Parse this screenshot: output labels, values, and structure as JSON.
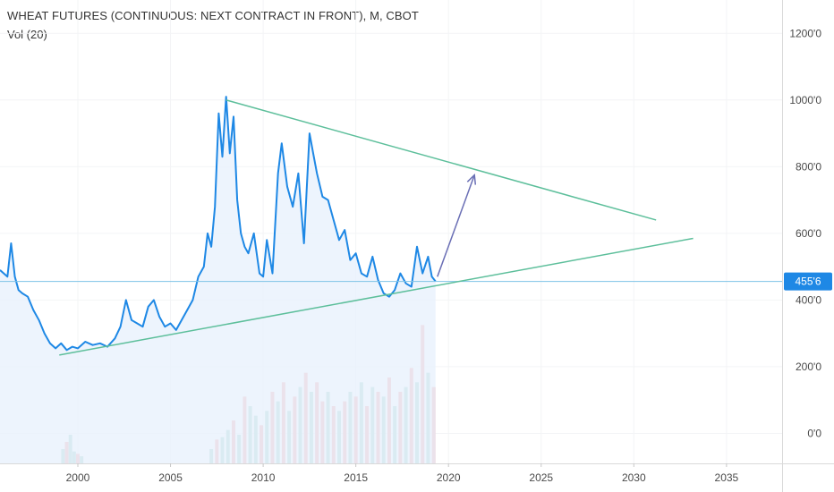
{
  "header": {
    "title": "WHEAT FUTURES (CONTINUOUS: NEXT CONTRACT IN FRONT), M, CBOT",
    "volume_label": "Vol (20)"
  },
  "colors": {
    "price_line": "#1e88e5",
    "price_fill": "#e8f1fc",
    "trendline": "#5dbf9b",
    "arrow": "#6a6fb5",
    "hline": "#7ec3e6",
    "badge_bg": "#1e88e5",
    "vol_up": "#9ed3c6",
    "vol_down": "#f2a3a6",
    "axis_text": "#4a4a4a",
    "grid": "#f3f4f6"
  },
  "chart_data": {
    "type": "line",
    "y_axis": {
      "ticks": [
        "0'0",
        "200'0",
        "400'0",
        "600'0",
        "800'0",
        "1000'0",
        "1200'0"
      ],
      "tick_values": [
        0,
        200,
        400,
        600,
        800,
        1000,
        1200
      ],
      "range": [
        -90,
        1300
      ],
      "current_value_label": "455'6",
      "current_value": 455.75
    },
    "x_axis": {
      "ticks": [
        "2000",
        "2005",
        "2010",
        "2015",
        "2020",
        "2025",
        "2030",
        "2035"
      ],
      "tick_values": [
        2000,
        2005,
        2010,
        2015,
        2020,
        2025,
        2030,
        2035
      ],
      "range": [
        1995.8,
        2038.0
      ]
    },
    "series": [
      {
        "values_x": [
          1995.8,
          1996.2,
          1996.4,
          1996.6,
          1996.8,
          1997.0,
          1997.3,
          1997.6,
          1997.9,
          1998.2,
          1998.5,
          1998.8,
          1999.1,
          1999.4,
          1999.7,
          2000.0,
          2000.4,
          2000.8,
          2001.2,
          2001.6,
          2002.0,
          2002.3,
          2002.6,
          2002.9,
          2003.2,
          2003.5,
          2003.8,
          2004.1,
          2004.4,
          2004.7,
          2005.0,
          2005.3,
          2005.6,
          2005.9,
          2006.2,
          2006.5,
          2006.8,
          2007.0,
          2007.2,
          2007.4,
          2007.6,
          2007.8,
          2008.0,
          2008.2,
          2008.4,
          2008.6,
          2008.8,
          2009.0,
          2009.2,
          2009.5,
          2009.8,
          2010.0,
          2010.2,
          2010.5,
          2010.8,
          2011.0,
          2011.3,
          2011.6,
          2011.9,
          2012.2,
          2012.5,
          2012.7,
          2012.9,
          2013.2,
          2013.5,
          2013.8,
          2014.1,
          2014.4,
          2014.7,
          2015.0,
          2015.3,
          2015.6,
          2015.9,
          2016.2,
          2016.5,
          2016.8,
          2017.1,
          2017.4,
          2017.7,
          2018.0,
          2018.3,
          2018.6,
          2018.9,
          2019.1,
          2019.3
        ],
        "values_y": [
          490,
          470,
          570,
          470,
          430,
          420,
          410,
          370,
          340,
          300,
          270,
          255,
          270,
          250,
          260,
          255,
          275,
          265,
          270,
          260,
          285,
          320,
          400,
          340,
          330,
          320,
          380,
          400,
          350,
          320,
          330,
          310,
          340,
          370,
          400,
          470,
          500,
          600,
          560,
          680,
          960,
          830,
          1010,
          840,
          950,
          700,
          600,
          560,
          540,
          600,
          480,
          470,
          580,
          480,
          780,
          870,
          740,
          680,
          780,
          570,
          900,
          840,
          780,
          710,
          700,
          640,
          580,
          610,
          520,
          540,
          480,
          470,
          530,
          460,
          420,
          410,
          430,
          480,
          450,
          440,
          560,
          480,
          530,
          470,
          456
        ]
      }
    ],
    "volume": {
      "note": "Vol (20)",
      "values_x": [
        1999.2,
        1999.4,
        1999.6,
        1999.8,
        2000.0,
        2000.2,
        2007.2,
        2007.5,
        2007.8,
        2008.1,
        2008.4,
        2008.7,
        2009.0,
        2009.3,
        2009.6,
        2009.9,
        2010.2,
        2010.5,
        2010.8,
        2011.1,
        2011.4,
        2011.7,
        2012.0,
        2012.3,
        2012.6,
        2012.9,
        2013.2,
        2013.5,
        2013.8,
        2014.1,
        2014.4,
        2014.7,
        2015.0,
        2015.3,
        2015.6,
        2015.9,
        2016.2,
        2016.5,
        2016.8,
        2017.1,
        2017.4,
        2017.7,
        2018.0,
        2018.3,
        2018.6,
        2018.9,
        2019.2
      ],
      "values": [
        30,
        45,
        60,
        25,
        20,
        15,
        30,
        50,
        55,
        70,
        90,
        60,
        140,
        120,
        100,
        80,
        110,
        150,
        130,
        170,
        110,
        140,
        160,
        190,
        150,
        170,
        130,
        150,
        120,
        110,
        130,
        150,
        140,
        170,
        120,
        160,
        150,
        140,
        180,
        120,
        150,
        160,
        200,
        170,
        290,
        190,
        160
      ],
      "up": [
        true,
        false,
        true,
        true,
        false,
        true,
        true,
        false,
        true,
        true,
        false,
        true,
        false,
        true,
        true,
        false,
        true,
        false,
        true,
        false,
        true,
        false,
        true,
        false,
        true,
        false,
        false,
        true,
        false,
        true,
        false,
        true,
        false,
        true,
        false,
        true,
        false,
        true,
        false,
        true,
        false,
        true,
        false,
        true,
        false,
        true,
        false
      ]
    },
    "annotations": {
      "upper_trendline": [
        [
          2008.0,
          1000
        ],
        [
          2031.2,
          640
        ]
      ],
      "lower_trendline": [
        [
          1999.0,
          235
        ],
        [
          2033.2,
          585
        ]
      ],
      "arrow": [
        [
          2019.4,
          470
        ],
        [
          2021.4,
          775
        ]
      ],
      "current_price_line": 455.75
    },
    "grid": true
  }
}
